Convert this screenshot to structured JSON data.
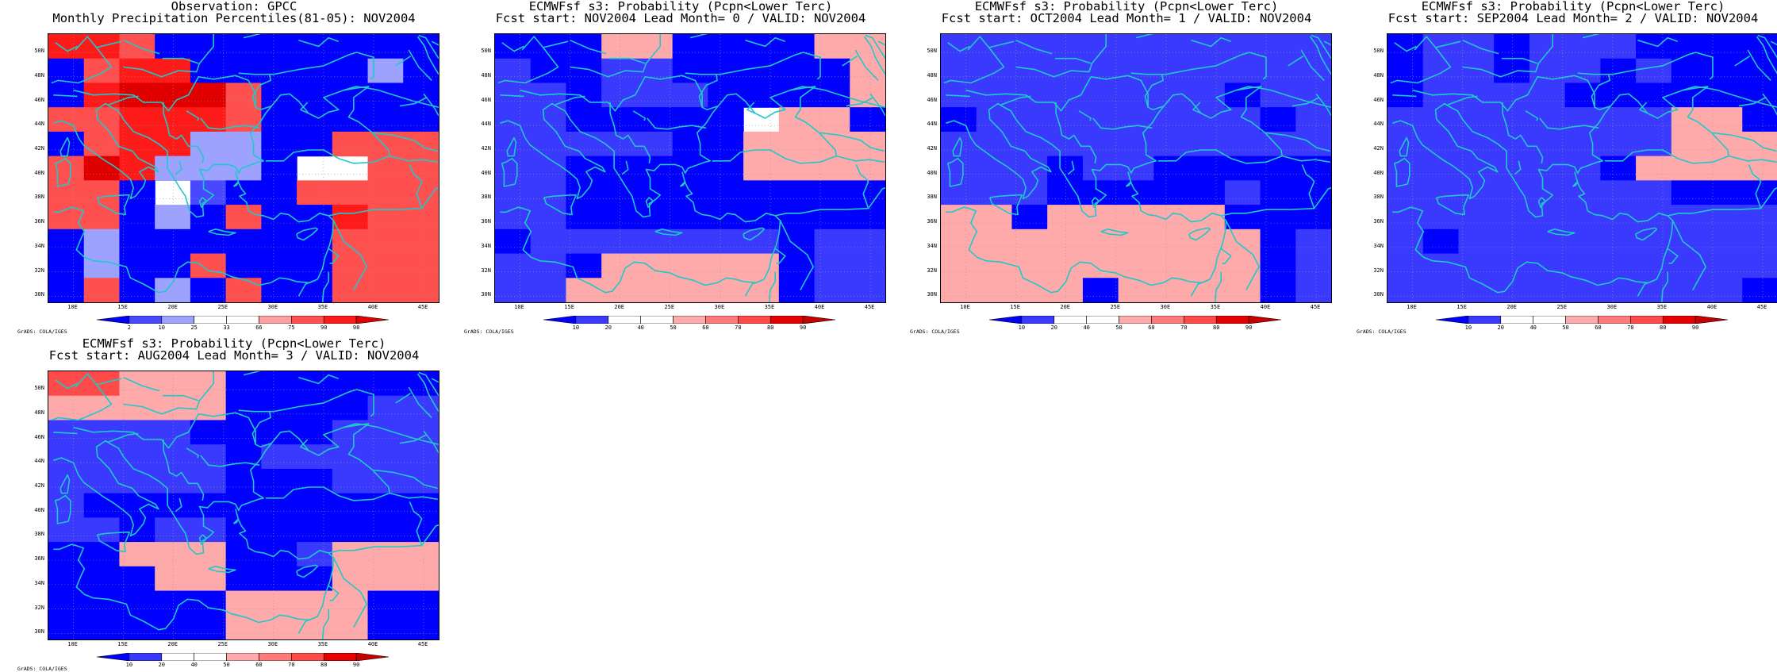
{
  "palettes": {
    "obs": [
      "#0000ff",
      "#4848ff",
      "#9ea2ff",
      "#ffffff",
      "#ffffff",
      "#ffa0a0",
      "#ff5050",
      "#ff1a1a",
      "#e00000"
    ],
    "prob": [
      "#0000ff",
      "#3a3aff",
      "#ffffff",
      "#ffffff",
      "#ffaaaa",
      "#ff7a7a",
      "#ff4a4a",
      "#e60000",
      "#c80000"
    ]
  },
  "panels": [
    {
      "title1": "Observation: GPCC",
      "title2": "Monthly Precipitation Percentiles(81-05): NOV2004",
      "colorbar_ticks": [
        "2",
        "10",
        "25",
        "33",
        "66",
        "75",
        "90",
        "98"
      ],
      "palette": "obs",
      "grid": [
        "77600000000",
        "06770000020",
        "07888600000",
        "66777600000",
        "06772200666",
        "68722203366",
        "66031006666",
        "66020600766",
        "02000000666",
        "02006000666",
        "06020600666"
      ]
    },
    {
      "title1": "ECMWFsf s3: Probability (Pcpn<Lower Terc)",
      "title2": "Fcst start: NOV2004  Lead Month= 0 / VALID: NOV2004",
      "colorbar_ticks": [
        "10",
        "20",
        "40",
        "50",
        "60",
        "70",
        "80",
        "90"
      ],
      "palette": "prob",
      "grid": [
        "00044000044",
        "10011000004",
        "11011100004",
        "11000002440",
        "11111004444",
        "11000004444",
        "11000000000",
        "11000000000",
        "01111111011",
        "11044444011",
        "11444444011"
      ]
    },
    {
      "title1": "ECMWFsf s3: Probability (Pcpn<Lower Terc)",
      "title2": "Fcst start: OCT2004  Lead Month= 1 / VALID: NOV2004",
      "colorbar_ticks": [
        "10",
        "20",
        "40",
        "50",
        "60",
        "70",
        "80",
        "90"
      ],
      "palette": "prob",
      "grid": [
        "11111111111",
        "11111111111",
        "11111111011",
        "01111111101",
        "11111111111",
        "11101100000",
        "11100000100",
        "44044444000",
        "44444444401",
        "44444444401",
        "44440444401"
      ]
    },
    {
      "title1": "ECMWFsf s3: Probability (Pcpn<Lower Terc)",
      "title2": "Fcst start: SEP2004  Lead Month= 2 / VALID: NOV2004",
      "colorbar_ticks": [
        "10",
        "20",
        "40",
        "50",
        "60",
        "70",
        "80",
        "90"
      ],
      "palette": "prob",
      "grid": [
        "01101110000",
        "01101101000",
        "01111000000",
        "11111111440",
        "11111111444",
        "11111104444",
        "11111111000",
        "11111111111",
        "10111111111",
        "11111111111",
        "11111111110"
      ]
    },
    {
      "title1": "ECMWFsf s3: Probability (Pcpn<Lower Terc)",
      "title2": "Fcst start: AUG2004  Lead Month= 3 / VALID: NOV2004",
      "colorbar_ticks": [
        "10",
        "20",
        "40",
        "50",
        "60",
        "70",
        "80",
        "90"
      ],
      "palette": "prob",
      "grid": [
        "66444000000",
        "44444000011",
        "11110000111",
        "11111011111",
        "11111000111",
        "10000000000",
        "11011000000",
        "00444001444",
        "00044000444",
        "00000444400",
        "00000444400"
      ]
    }
  ],
  "axis": {
    "lat_labels": [
      "50N",
      "48N",
      "46N",
      "44N",
      "42N",
      "40N",
      "38N",
      "36N",
      "34N",
      "32N",
      "30N"
    ],
    "lon_labels": [
      "10E",
      "15E",
      "20E",
      "25E",
      "30E",
      "35E",
      "40E",
      "45E"
    ]
  },
  "credit": "GrADS: COLA/IGES"
}
